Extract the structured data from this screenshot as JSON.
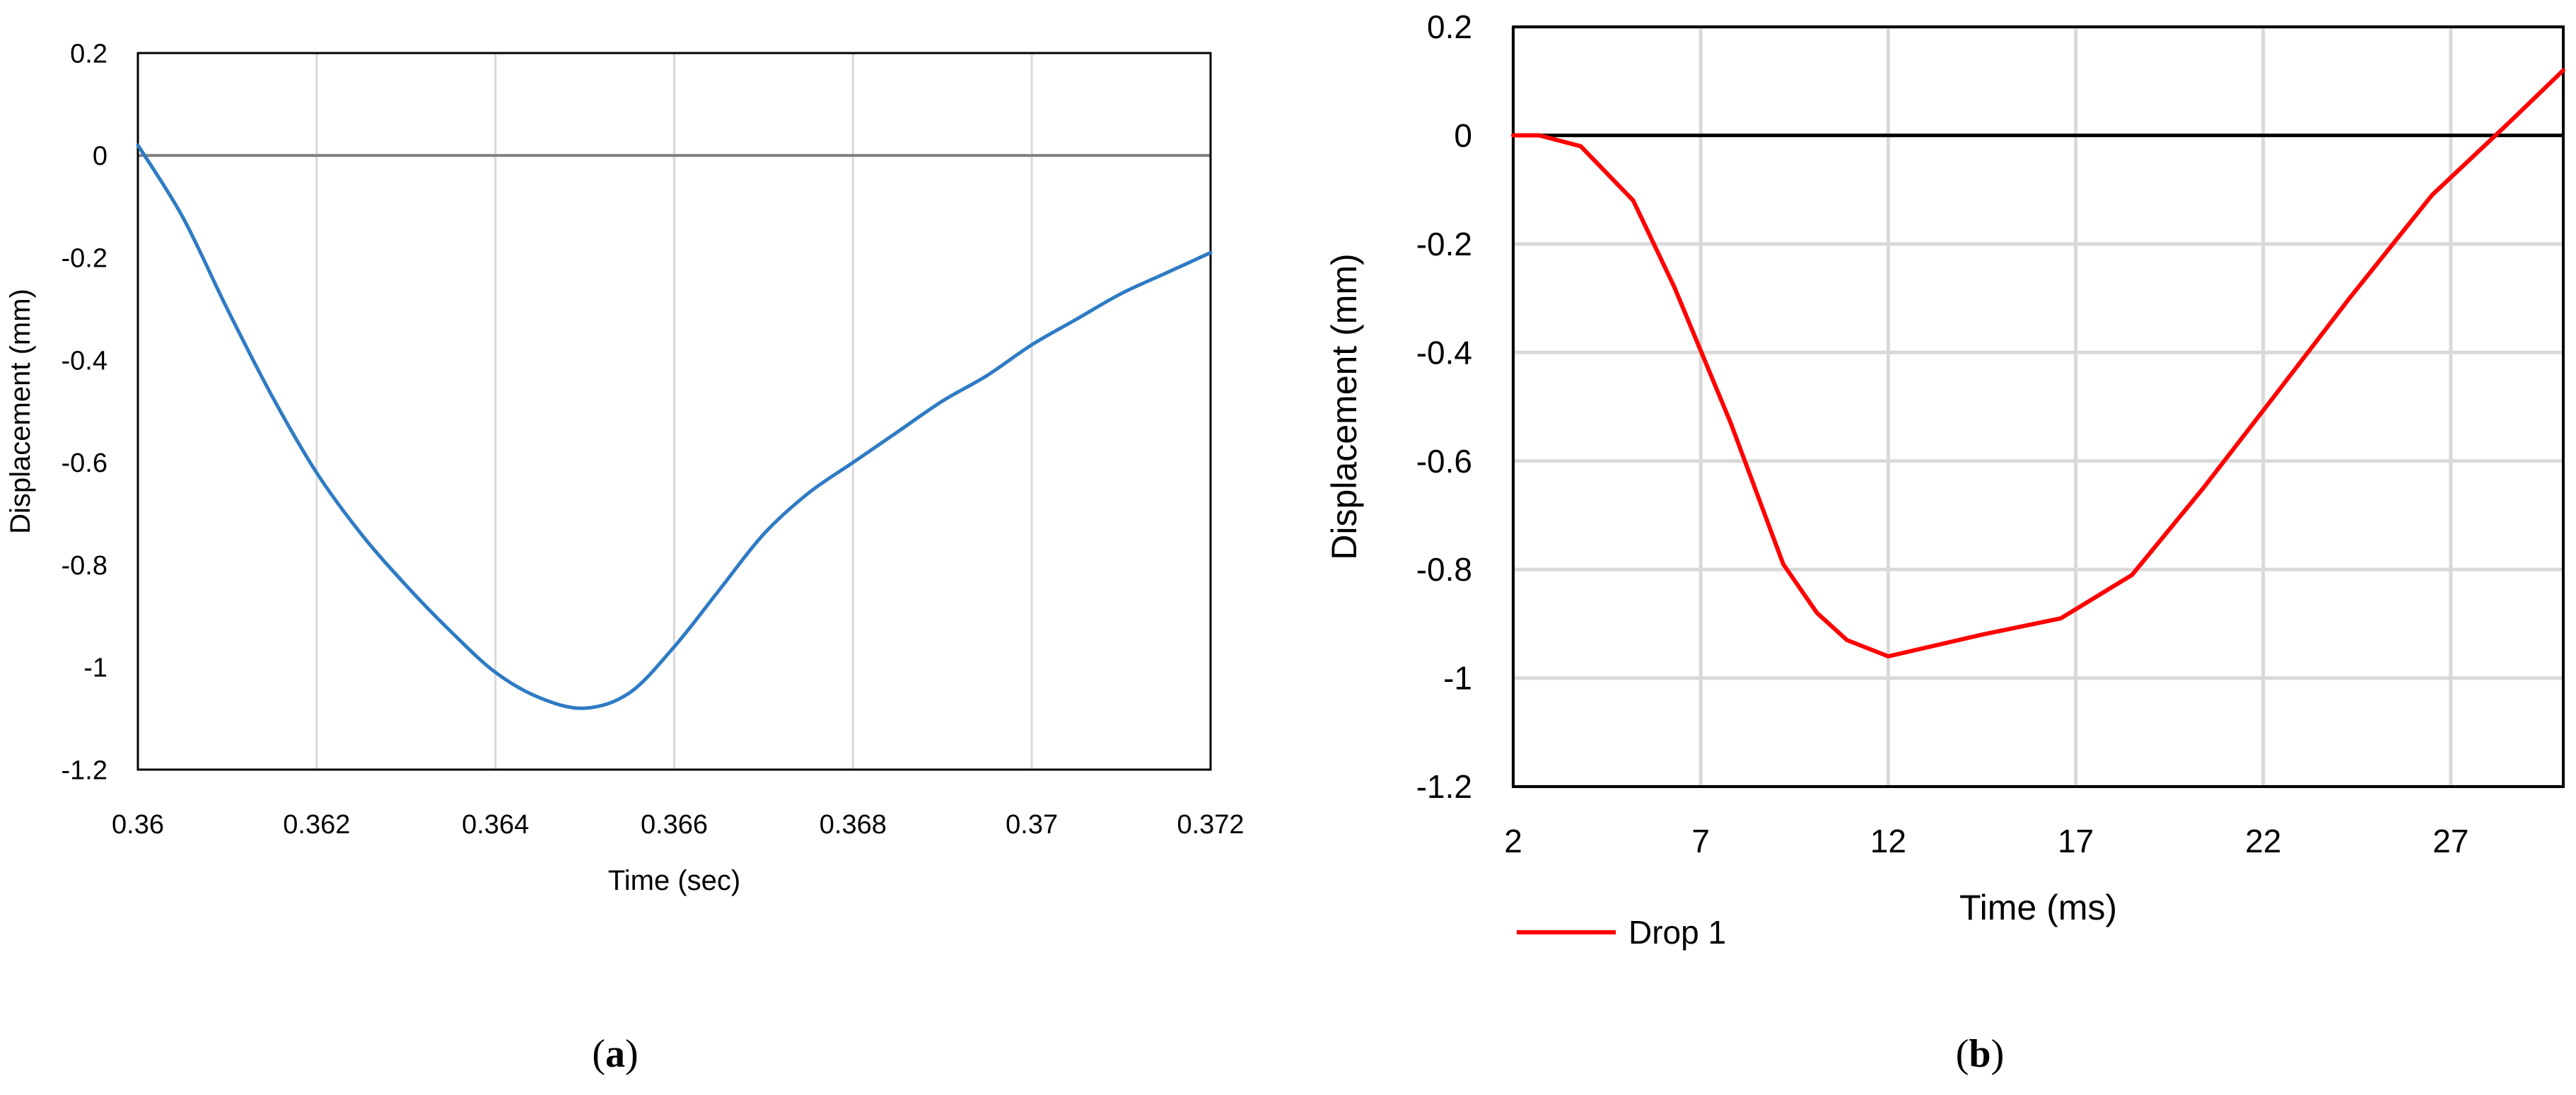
{
  "panels": {
    "a": {
      "caption_open": "(",
      "caption_letter": "a",
      "caption_close": ")"
    },
    "b": {
      "caption_open": "(",
      "caption_letter": "b",
      "caption_close": ")"
    }
  },
  "chart_data": [
    {
      "id": "a",
      "type": "line",
      "title": "",
      "xlabel": "Time (sec)",
      "ylabel": "Displacement (mm)",
      "xlim": [
        0.36,
        0.372
      ],
      "ylim": [
        -1.2,
        0.2
      ],
      "xticks": [
        "0.36",
        "0.362",
        "0.364",
        "0.366",
        "0.368",
        "0.37",
        "0.372"
      ],
      "yticks": [
        "0.2",
        "0",
        "-0.2",
        "-0.4",
        "-0.6",
        "-0.8",
        "-1",
        "-1.2"
      ],
      "xtick_values": [
        0.36,
        0.362,
        0.364,
        0.366,
        0.368,
        0.37,
        0.372
      ],
      "ytick_values": [
        0.2,
        0,
        -0.2,
        -0.4,
        -0.6,
        -0.8,
        -1,
        -1.2
      ],
      "grid": "vertical",
      "zero_line": true,
      "legend": "none",
      "series": [
        {
          "color": "#2E7BC4",
          "x": [
            0.36,
            0.3605,
            0.361,
            0.3615,
            0.362,
            0.3625,
            0.363,
            0.3635,
            0.364,
            0.3645,
            0.365,
            0.3655,
            0.366,
            0.3665,
            0.367,
            0.3675,
            0.368,
            0.3685,
            0.369,
            0.3695,
            0.37,
            0.3705,
            0.371,
            0.3715,
            0.372
          ],
          "y": [
            0.02,
            -0.12,
            -0.3,
            -0.47,
            -0.62,
            -0.74,
            -0.84,
            -0.93,
            -1.01,
            -1.06,
            -1.08,
            -1.05,
            -0.96,
            -0.85,
            -0.74,
            -0.66,
            -0.6,
            -0.54,
            -0.48,
            -0.43,
            -0.37,
            -0.32,
            -0.27,
            -0.23,
            -0.19
          ]
        }
      ]
    },
    {
      "id": "b",
      "type": "line",
      "title": "",
      "xlabel": "Time (ms)",
      "ylabel": "Displacement (mm)",
      "xlim": [
        2,
        30
      ],
      "ylim": [
        -1.2,
        0.2
      ],
      "xticks": [
        "2",
        "7",
        "12",
        "17",
        "22",
        "27"
      ],
      "yticks": [
        "0.2",
        "0",
        "-0.2",
        "-0.4",
        "-0.6",
        "-0.8",
        "-1",
        "-1.2"
      ],
      "xtick_values": [
        2,
        7,
        12,
        17,
        22,
        27
      ],
      "ytick_values": [
        0.2,
        0,
        -0.2,
        -0.4,
        -0.6,
        -0.8,
        -1,
        -1.2
      ],
      "grid": "both",
      "zero_line": true,
      "legend": "bottom-left",
      "series": [
        {
          "name": "Drop 1",
          "color": "#FF0000",
          "x": [
            2,
            2.7,
            3.8,
            5.2,
            6.3,
            7.8,
            9.2,
            10.1,
            10.9,
            12,
            14.5,
            16.6,
            18.5,
            20.4,
            22.3,
            24.3,
            26.5,
            28.5,
            30
          ],
          "y": [
            0,
            0,
            -0.02,
            -0.12,
            -0.28,
            -0.53,
            -0.79,
            -0.88,
            -0.93,
            -0.96,
            -0.92,
            -0.89,
            -0.81,
            -0.65,
            -0.48,
            -0.3,
            -0.11,
            0.02,
            0.12
          ]
        }
      ]
    }
  ]
}
